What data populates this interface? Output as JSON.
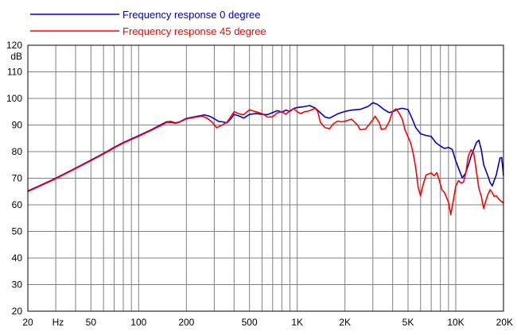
{
  "chart_data": {
    "type": "line",
    "ylabel": "dB",
    "xunit": "Hz",
    "xscale": "log",
    "xlim": [
      20,
      20000
    ],
    "ylim": [
      20,
      120
    ],
    "grid": true,
    "legend_position": "top-left",
    "x_ticks": [
      {
        "value": 20,
        "label": "20"
      },
      {
        "value": 50,
        "label": "50"
      },
      {
        "value": 100,
        "label": "100"
      },
      {
        "value": 200,
        "label": "200"
      },
      {
        "value": 500,
        "label": "500"
      },
      {
        "value": 1000,
        "label": "1K"
      },
      {
        "value": 2000,
        "label": "2K"
      },
      {
        "value": 5000,
        "label": "5K"
      },
      {
        "value": 10000,
        "label": "10K"
      },
      {
        "value": 20000,
        "label": "20K"
      }
    ],
    "y_ticks": [
      20,
      30,
      40,
      50,
      60,
      70,
      80,
      90,
      100,
      110,
      120
    ],
    "series": [
      {
        "name": "Frequency response 0 degree",
        "color": "#0000cc",
        "points": [
          [
            20,
            65.2
          ],
          [
            25,
            67.8
          ],
          [
            30,
            70.0
          ],
          [
            40,
            73.8
          ],
          [
            50,
            76.8
          ],
          [
            60,
            79.3
          ],
          [
            70,
            81.6
          ],
          [
            80,
            83.4
          ],
          [
            100,
            86.0
          ],
          [
            120,
            88.2
          ],
          [
            140,
            90.3
          ],
          [
            150,
            91.2
          ],
          [
            160,
            91.3
          ],
          [
            170,
            90.8
          ],
          [
            180,
            91.1
          ],
          [
            200,
            92.5
          ],
          [
            230,
            93.2
          ],
          [
            260,
            93.8
          ],
          [
            280,
            93.3
          ],
          [
            300,
            92.4
          ],
          [
            320,
            91.3
          ],
          [
            340,
            91.2
          ],
          [
            360,
            90.8
          ],
          [
            380,
            92.2
          ],
          [
            400,
            94.0
          ],
          [
            430,
            93.4
          ],
          [
            460,
            92.6
          ],
          [
            500,
            94.0
          ],
          [
            550,
            94.3
          ],
          [
            600,
            94.0
          ],
          [
            650,
            93.9
          ],
          [
            700,
            94.7
          ],
          [
            750,
            95.4
          ],
          [
            800,
            94.8
          ],
          [
            850,
            95.6
          ],
          [
            900,
            95.1
          ],
          [
            950,
            96.2
          ],
          [
            1000,
            96.6
          ],
          [
            1100,
            96.9
          ],
          [
            1200,
            97.3
          ],
          [
            1300,
            96.4
          ],
          [
            1400,
            94.6
          ],
          [
            1500,
            93.0
          ],
          [
            1600,
            92.6
          ],
          [
            1700,
            93.4
          ],
          [
            1800,
            94.2
          ],
          [
            2000,
            95.1
          ],
          [
            2200,
            95.6
          ],
          [
            2500,
            95.9
          ],
          [
            2800,
            97.0
          ],
          [
            3000,
            98.4
          ],
          [
            3200,
            97.8
          ],
          [
            3500,
            96.0
          ],
          [
            3800,
            94.7
          ],
          [
            4000,
            95.0
          ],
          [
            4300,
            95.9
          ],
          [
            4600,
            96.3
          ],
          [
            5000,
            95.8
          ],
          [
            5300,
            92.5
          ],
          [
            5600,
            89.0
          ],
          [
            6000,
            86.7
          ],
          [
            6500,
            86.1
          ],
          [
            7000,
            85.7
          ],
          [
            7500,
            83.3
          ],
          [
            8000,
            82.1
          ],
          [
            8500,
            81.2
          ],
          [
            9000,
            81.6
          ],
          [
            9500,
            80.8
          ],
          [
            10000,
            76.5
          ],
          [
            10500,
            73.2
          ],
          [
            11000,
            70.1
          ],
          [
            11500,
            71.8
          ],
          [
            12000,
            74.9
          ],
          [
            12500,
            78.3
          ],
          [
            13000,
            80.9
          ],
          [
            13500,
            83.4
          ],
          [
            14000,
            84.3
          ],
          [
            14500,
            80.6
          ],
          [
            15000,
            75.1
          ],
          [
            16000,
            70.6
          ],
          [
            16500,
            68.3
          ],
          [
            17000,
            67.1
          ],
          [
            18000,
            71.2
          ],
          [
            19000,
            77.6
          ],
          [
            19500,
            77.8
          ],
          [
            20000,
            71.0
          ]
        ]
      },
      {
        "name": "Frequency response 45 degree",
        "color": "#ff0000",
        "points": [
          [
            20,
            65.0
          ],
          [
            25,
            67.6
          ],
          [
            30,
            69.8
          ],
          [
            40,
            73.6
          ],
          [
            50,
            76.6
          ],
          [
            60,
            79.1
          ],
          [
            70,
            81.4
          ],
          [
            80,
            83.2
          ],
          [
            100,
            85.8
          ],
          [
            120,
            88.0
          ],
          [
            140,
            90.0
          ],
          [
            150,
            91.0
          ],
          [
            160,
            91.0
          ],
          [
            170,
            90.6
          ],
          [
            180,
            91.0
          ],
          [
            200,
            92.3
          ],
          [
            230,
            93.0
          ],
          [
            250,
            93.3
          ],
          [
            270,
            92.6
          ],
          [
            290,
            91.2
          ],
          [
            310,
            89.0
          ],
          [
            330,
            89.8
          ],
          [
            360,
            91.0
          ],
          [
            400,
            95.0
          ],
          [
            430,
            94.2
          ],
          [
            460,
            93.9
          ],
          [
            500,
            95.7
          ],
          [
            550,
            95.0
          ],
          [
            600,
            94.3
          ],
          [
            650,
            93.0
          ],
          [
            700,
            93.1
          ],
          [
            750,
            94.6
          ],
          [
            800,
            95.0
          ],
          [
            850,
            94.0
          ],
          [
            900,
            95.4
          ],
          [
            950,
            96.2
          ],
          [
            1000,
            95.0
          ],
          [
            1050,
            94.3
          ],
          [
            1100,
            94.9
          ],
          [
            1200,
            95.4
          ],
          [
            1300,
            96.3
          ],
          [
            1350,
            95.0
          ],
          [
            1400,
            91.0
          ],
          [
            1500,
            89.0
          ],
          [
            1600,
            88.6
          ],
          [
            1700,
            90.6
          ],
          [
            1800,
            91.5
          ],
          [
            1900,
            91.2
          ],
          [
            2000,
            91.4
          ],
          [
            2200,
            92.2
          ],
          [
            2400,
            90.0
          ],
          [
            2500,
            88.2
          ],
          [
            2700,
            88.5
          ],
          [
            3000,
            92.0
          ],
          [
            3100,
            93.3
          ],
          [
            3300,
            90.8
          ],
          [
            3400,
            88.3
          ],
          [
            3600,
            88.7
          ],
          [
            3800,
            91.2
          ],
          [
            4000,
            95.2
          ],
          [
            4200,
            96.1
          ],
          [
            4400,
            94.4
          ],
          [
            4600,
            92.2
          ],
          [
            4800,
            87.9
          ],
          [
            5000,
            85.6
          ],
          [
            5200,
            83.2
          ],
          [
            5400,
            79.1
          ],
          [
            5600,
            73.6
          ],
          [
            5800,
            66.5
          ],
          [
            6000,
            63.4
          ],
          [
            6200,
            67.2
          ],
          [
            6500,
            71.2
          ],
          [
            7000,
            72.0
          ],
          [
            7300,
            70.9
          ],
          [
            7600,
            72.1
          ],
          [
            7900,
            68.9
          ],
          [
            8200,
            65.5
          ],
          [
            8500,
            64.6
          ],
          [
            9000,
            60.9
          ],
          [
            9300,
            56.3
          ],
          [
            9700,
            62.4
          ],
          [
            10000,
            67.0
          ],
          [
            10400,
            69.1
          ],
          [
            10800,
            68.2
          ],
          [
            11200,
            68.5
          ],
          [
            11600,
            72.3
          ],
          [
            12000,
            78.4
          ],
          [
            12500,
            80.7
          ],
          [
            13000,
            79.3
          ],
          [
            13500,
            72.5
          ],
          [
            14000,
            66.2
          ],
          [
            14500,
            63.1
          ],
          [
            15000,
            58.6
          ],
          [
            15500,
            61.6
          ],
          [
            16000,
            64.1
          ],
          [
            16500,
            65.7
          ],
          [
            17000,
            64.6
          ],
          [
            17500,
            63.1
          ],
          [
            18000,
            63.4
          ],
          [
            19000,
            61.7
          ],
          [
            20000,
            60.7
          ]
        ]
      }
    ]
  }
}
